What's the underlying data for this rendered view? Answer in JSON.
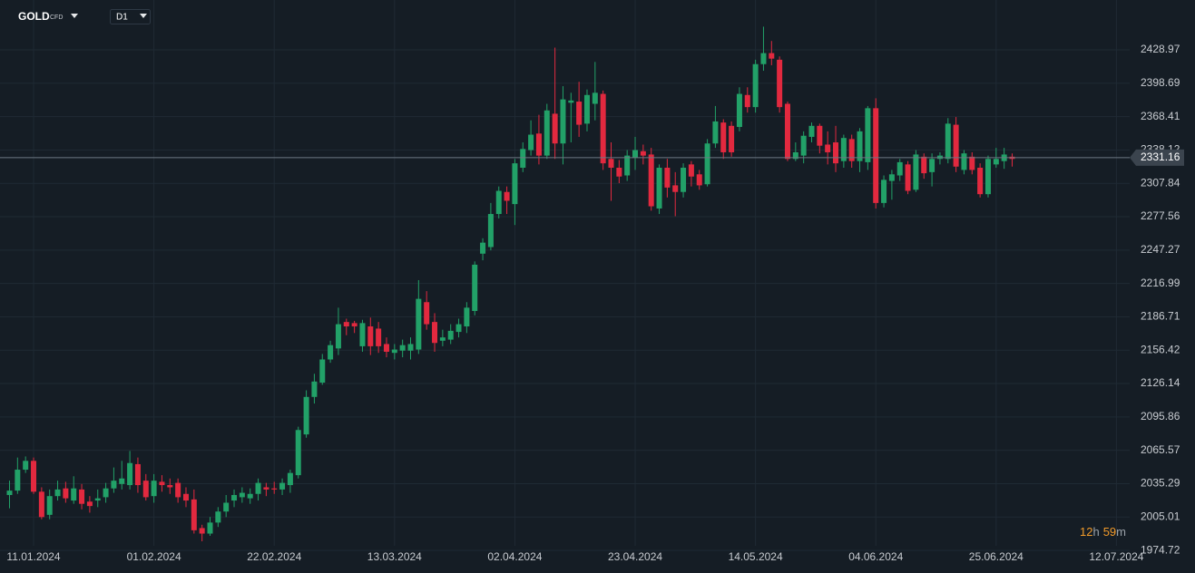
{
  "toolbar": {
    "symbol": "GOLD",
    "symbol_type": "CFD",
    "timeframe": "D1"
  },
  "chart_data": {
    "type": "candlestick",
    "up_color": "#22a168",
    "down_color": "#e2293f",
    "grid": true,
    "categories": [
      null,
      null,
      null,
      "11.01.2024",
      null,
      null,
      null,
      null,
      null,
      null,
      null,
      null,
      null,
      null,
      null,
      null,
      null,
      null,
      "01.02.2024",
      null,
      null,
      null,
      null,
      null,
      null,
      null,
      null,
      null,
      null,
      null,
      null,
      null,
      null,
      "22.02.2024",
      null,
      null,
      null,
      null,
      null,
      null,
      null,
      null,
      null,
      null,
      null,
      null,
      null,
      null,
      "13.03.2024",
      null,
      null,
      null,
      null,
      null,
      null,
      null,
      null,
      null,
      null,
      null,
      null,
      null,
      null,
      "02.04.2024",
      null,
      null,
      null,
      null,
      null,
      null,
      null,
      null,
      null,
      null,
      null,
      null,
      null,
      null,
      "23.04.2024",
      null,
      null,
      null,
      null,
      null,
      null,
      null,
      null,
      null,
      null,
      null,
      null,
      null,
      null,
      "14.05.2024",
      null,
      null,
      null,
      null,
      null,
      null,
      null,
      null,
      null,
      null,
      null,
      null,
      null,
      null,
      "04.06.2024",
      null,
      null,
      null,
      null,
      null,
      null,
      null,
      null,
      null,
      null,
      null,
      null,
      null,
      null,
      "25.06.2024",
      null,
      null,
      null,
      null,
      null,
      null,
      null,
      null,
      null,
      null,
      null,
      null,
      null,
      null,
      "12.07.2024"
    ],
    "open": [
      2025,
      2029,
      2048,
      2056,
      2028,
      2007,
      2024,
      2031,
      2020,
      2030,
      2019,
      2020,
      2023,
      2031,
      2035,
      2034,
      2053,
      2038,
      2024,
      2037,
      2034,
      2036,
      2026,
      2021,
      1995,
      1990,
      2000,
      2010,
      2020,
      2023,
      2022,
      2026,
      2032,
      2031,
      2030,
      2034,
      2043,
      2080,
      2114,
      2127,
      2148,
      2158,
      2182,
      2181,
      2160,
      2178,
      2176,
      2162,
      2154,
      2156,
      2156,
      2157,
      2200,
      2182,
      2165,
      2166,
      2173,
      2178,
      2192,
      2244,
      2250,
      2280,
      2300,
      2289,
      2322,
      2338,
      2353,
      2333,
      2371,
      2344,
      2381,
      2382,
      2362,
      2380,
      2389,
      2330,
      2322,
      2315,
      2331,
      2337,
      2334,
      2285,
      2322,
      2306,
      2300,
      2325,
      2316,
      2307,
      2344,
      2363,
      2360,
      2359,
      2388,
      2377,
      2416,
      2426,
      2420,
      2380,
      2330,
      2333,
      2350,
      2360,
      2343,
      2345,
      2328,
      2348,
      2328,
      2327,
      2376,
      2290,
      2310,
      2315,
      2325,
      2302,
      2332,
      2318,
      2330,
      2330,
      2361,
      2320,
      2332,
      2322,
      2298,
      2325,
      2328,
      2332,
      null,
      null,
      null,
      null,
      null,
      null,
      null,
      null,
      null,
      null,
      null,
      null,
      null
    ],
    "high": [
      2038,
      2059,
      2060,
      2059,
      2032,
      2030,
      2038,
      2037,
      2042,
      2035,
      2024,
      2030,
      2036,
      2050,
      2056,
      2065,
      2059,
      2044,
      2044,
      2043,
      2040,
      2040,
      2032,
      2030,
      1998,
      2005,
      2014,
      2025,
      2030,
      2032,
      2031,
      2040,
      2036,
      2037,
      2040,
      2048,
      2087,
      2120,
      2135,
      2153,
      2165,
      2195,
      2185,
      2183,
      2184,
      2186,
      2182,
      2168,
      2162,
      2166,
      2168,
      2220,
      2210,
      2190,
      2175,
      2180,
      2185,
      2200,
      2237,
      2258,
      2290,
      2305,
      2305,
      2330,
      2345,
      2365,
      2370,
      2380,
      2431,
      2396,
      2390,
      2400,
      2393,
      2418,
      2392,
      2345,
      2329,
      2338,
      2350,
      2343,
      2340,
      2325,
      2330,
      2318,
      2326,
      2328,
      2320,
      2348,
      2378,
      2366,
      2364,
      2395,
      2395,
      2420,
      2450,
      2437,
      2423,
      2382,
      2345,
      2355,
      2363,
      2362,
      2355,
      2360,
      2352,
      2352,
      2358,
      2378,
      2385,
      2315,
      2320,
      2330,
      2328,
      2338,
      2335,
      2335,
      2336,
      2367,
      2368,
      2338,
      2336,
      2326,
      2333,
      2340,
      2340,
      2335,
      null,
      null,
      null,
      null,
      null,
      null,
      null,
      null,
      null,
      null,
      null,
      null,
      null
    ],
    "low": [
      2013,
      2026,
      2045,
      2026,
      2003,
      2003,
      2020,
      2018,
      2017,
      2012,
      2009,
      2014,
      2018,
      2027,
      2030,
      2030,
      2027,
      2020,
      2018,
      2028,
      2026,
      2018,
      2014,
      1990,
      1983,
      1988,
      1996,
      2005,
      2014,
      2018,
      2017,
      2020,
      2024,
      2026,
      2025,
      2027,
      2040,
      2077,
      2108,
      2125,
      2145,
      2152,
      2170,
      2172,
      2155,
      2152,
      2154,
      2150,
      2148,
      2150,
      2148,
      2153,
      2175,
      2155,
      2160,
      2162,
      2168,
      2172,
      2188,
      2238,
      2247,
      2276,
      2280,
      2270,
      2318,
      2333,
      2325,
      2330,
      2330,
      2325,
      2345,
      2350,
      2355,
      2365,
      2320,
      2292,
      2308,
      2310,
      2320,
      2325,
      2283,
      2280,
      2295,
      2278,
      2295,
      2305,
      2302,
      2305,
      2340,
      2330,
      2332,
      2355,
      2372,
      2372,
      2410,
      2415,
      2372,
      2328,
      2328,
      2326,
      2345,
      2335,
      2325,
      2318,
      2322,
      2322,
      2318,
      2320,
      2285,
      2286,
      2293,
      2310,
      2298,
      2300,
      2312,
      2305,
      2325,
      2326,
      2318,
      2316,
      2316,
      2295,
      2295,
      2322,
      2321,
      2323,
      null,
      null,
      null,
      null,
      null,
      null,
      null,
      null,
      null,
      null,
      null,
      null,
      null
    ],
    "close": [
      2029,
      2048,
      2056,
      2028,
      2005,
      2024,
      2030,
      2022,
      2031,
      2017,
      2015,
      2022,
      2031,
      2038,
      2040,
      2054,
      2034,
      2023,
      2038,
      2034,
      2032,
      2023,
      2020,
      1993,
      1990,
      2000,
      2010,
      2018,
      2025,
      2027,
      2026,
      2036,
      2030,
      2030,
      2036,
      2045,
      2084,
      2114,
      2128,
      2148,
      2161,
      2180,
      2178,
      2178,
      2181,
      2160,
      2160,
      2155,
      2157,
      2161,
      2162,
      2203,
      2180,
      2163,
      2168,
      2174,
      2180,
      2195,
      2234,
      2254,
      2280,
      2301,
      2292,
      2326,
      2339,
      2352,
      2333,
      2374,
      2344,
      2384,
      2383,
      2361,
      2388,
      2390,
      2326,
      2322,
      2314,
      2333,
      2338,
      2333,
      2287,
      2322,
      2304,
      2300,
      2322,
      2314,
      2306,
      2344,
      2364,
      2336,
      2336,
      2389,
      2377,
      2416,
      2426,
      2421,
      2377,
      2330,
      2336,
      2351,
      2360,
      2342,
      2336,
      2326,
      2349,
      2328,
      2355,
      2376,
      2290,
      2311,
      2316,
      2327,
      2301,
      2334,
      2317,
      2330,
      2333,
      2362,
      2323,
      2335,
      2320,
      2298,
      2330,
      2330,
      2334,
      2330,
      null,
      null,
      null,
      null,
      null,
      null,
      null,
      null,
      null,
      null,
      null,
      null,
      null
    ],
    "ylim": [
      1964.1,
      2474.2
    ],
    "yticks": [
      1974.72,
      2005.01,
      2035.29,
      2065.57,
      2095.86,
      2126.14,
      2156.42,
      2186.71,
      2216.99,
      2247.27,
      2277.56,
      2307.84,
      2338.12,
      2368.41,
      2398.69,
      2428.97
    ],
    "last_price": 2331.16,
    "countdown": {
      "hours": 12,
      "hours_unit": "h",
      "minutes": 59,
      "minutes_unit": "m"
    }
  }
}
